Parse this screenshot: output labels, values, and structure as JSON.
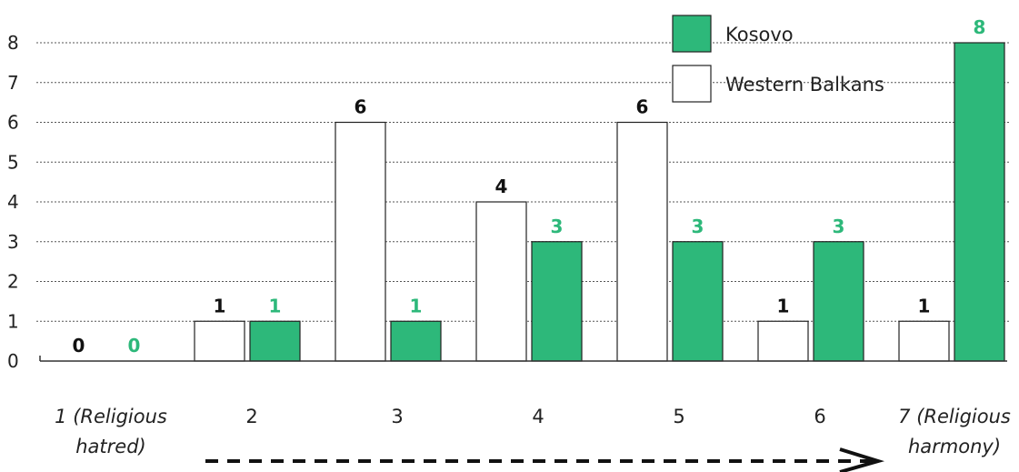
{
  "chart_data": {
    "type": "bar",
    "categories": [
      "1 (Religious hatred)",
      "2",
      "3",
      "4",
      "5",
      "6",
      "7 (Religious harmony)"
    ],
    "category_lines": [
      [
        "1 (Religious",
        "hatred)"
      ],
      [
        "2"
      ],
      [
        "3"
      ],
      [
        "4"
      ],
      [
        "5"
      ],
      [
        "6"
      ],
      [
        "7 (Religious",
        "harmony)"
      ]
    ],
    "series": [
      {
        "name": "Western Balkans",
        "values": [
          0,
          1,
          6,
          4,
          6,
          1,
          1
        ],
        "color": "#ffffff",
        "label_color": "#111111"
      },
      {
        "name": "Kosovo",
        "values": [
          0,
          1,
          1,
          3,
          3,
          3,
          8
        ],
        "color": "#2db87a",
        "label_color": "#2db87a"
      }
    ],
    "ylim": [
      0,
      8
    ],
    "yticks": [
      0,
      1,
      2,
      3,
      4,
      5,
      6,
      7,
      8
    ],
    "grid": true,
    "legend_position": "top-right",
    "legend_order": [
      "Kosovo",
      "Western Balkans"
    ],
    "annotation": "dashed arrow pointing right along the x-axis"
  }
}
